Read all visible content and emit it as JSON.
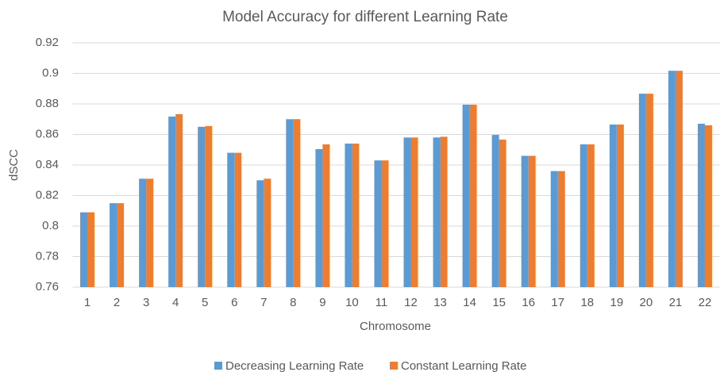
{
  "chart_data": {
    "type": "bar",
    "title": "Model Accuracy for different Learning Rate",
    "x_label": "Chromosome",
    "y_label": "dSCC",
    "categories": [
      "1",
      "2",
      "3",
      "4",
      "5",
      "6",
      "7",
      "8",
      "9",
      "10",
      "11",
      "12",
      "13",
      "14",
      "15",
      "16",
      "17",
      "18",
      "19",
      "20",
      "21",
      "22"
    ],
    "series": [
      {
        "name": "Decreasing Learning Rate",
        "color": "#5b9bd5",
        "values": [
          0.809,
          0.815,
          0.831,
          0.8717,
          0.865,
          0.848,
          0.83,
          0.87,
          0.8504,
          0.854,
          0.843,
          0.858,
          0.858,
          0.8795,
          0.8597,
          0.846,
          0.836,
          0.8535,
          0.8665,
          0.8867,
          0.9017,
          0.867
        ]
      },
      {
        "name": "Constant Learning Rate",
        "color": "#ed7d31",
        "values": [
          0.809,
          0.815,
          0.831,
          0.8733,
          0.8655,
          0.848,
          0.831,
          0.87,
          0.8535,
          0.854,
          0.843,
          0.858,
          0.8585,
          0.8795,
          0.8566,
          0.846,
          0.836,
          0.8535,
          0.8665,
          0.8867,
          0.9017,
          0.866
        ]
      }
    ],
    "ylim": [
      0.76,
      0.92
    ],
    "yticks": [
      0.76,
      0.78,
      0.8,
      0.82,
      0.84,
      0.86,
      0.88,
      0.9,
      0.92
    ],
    "grid": true,
    "legend": "bottom"
  }
}
